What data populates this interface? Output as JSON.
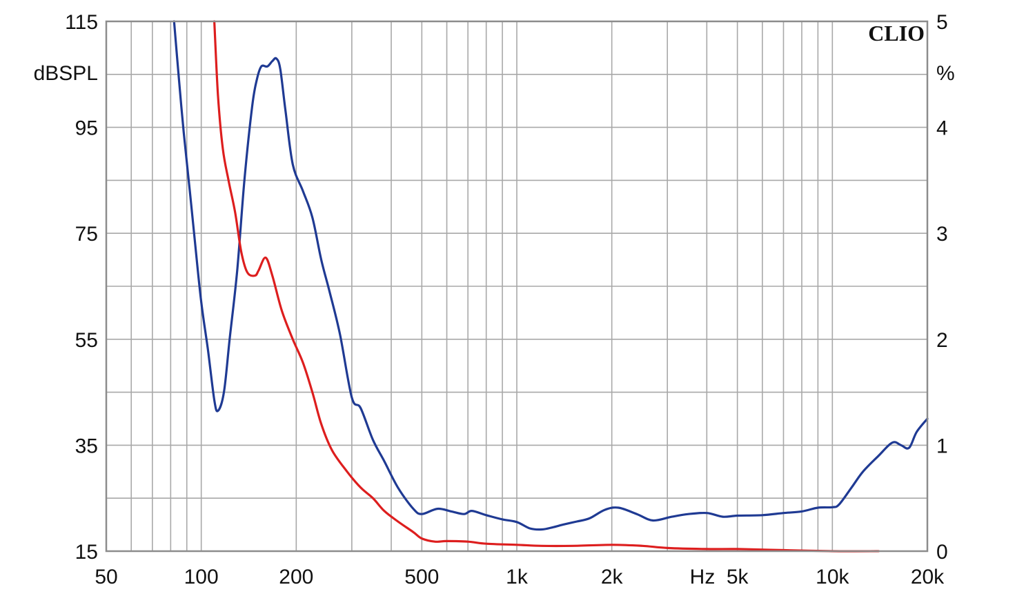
{
  "chart_data": {
    "type": "line",
    "brand": "CLIO",
    "x_axis": {
      "scale": "log",
      "range": [
        50,
        20000
      ],
      "unit_label": "Hz",
      "ticks": [
        {
          "value": 50,
          "label": "50"
        },
        {
          "value": 100,
          "label": "100"
        },
        {
          "value": 200,
          "label": "200"
        },
        {
          "value": 500,
          "label": "500"
        },
        {
          "value": 1000,
          "label": "1k"
        },
        {
          "value": 2000,
          "label": "2k"
        },
        {
          "value": 5000,
          "label": "5k"
        },
        {
          "value": 10000,
          "label": "10k"
        },
        {
          "value": 20000,
          "label": "20k"
        }
      ]
    },
    "y_left": {
      "unit_label": "dBSPL",
      "range": [
        15,
        115
      ],
      "ticks": [
        "15",
        "35",
        "55",
        "75",
        "95",
        "115"
      ]
    },
    "y_right": {
      "unit_label": "%",
      "range": [
        0,
        5
      ],
      "ticks": [
        "0",
        "1",
        "2",
        "3",
        "4",
        "5"
      ]
    },
    "grid": true,
    "colors": {
      "blue": "#1f3a93",
      "red": "#dd1e1e",
      "grid": "#a8a8a8"
    },
    "series": [
      {
        "color": "blue",
        "axis": "left",
        "points": [
          [
            82,
            115
          ],
          [
            85,
            104
          ],
          [
            88,
            94
          ],
          [
            92,
            83
          ],
          [
            96,
            72
          ],
          [
            100,
            62
          ],
          [
            105,
            53
          ],
          [
            110,
            43.5
          ],
          [
            113,
            41.5
          ],
          [
            118,
            45
          ],
          [
            123,
            55
          ],
          [
            130,
            68
          ],
          [
            137,
            85
          ],
          [
            145,
            99
          ],
          [
            150,
            104
          ],
          [
            155,
            106.5
          ],
          [
            162,
            106.5
          ],
          [
            168,
            107.5
          ],
          [
            173,
            108
          ],
          [
            178,
            106
          ],
          [
            185,
            98
          ],
          [
            195,
            88
          ],
          [
            210,
            83
          ],
          [
            225,
            78
          ],
          [
            240,
            70
          ],
          [
            255,
            64
          ],
          [
            275,
            56
          ],
          [
            300,
            44
          ],
          [
            320,
            42
          ],
          [
            350,
            36
          ],
          [
            380,
            32
          ],
          [
            420,
            27
          ],
          [
            470,
            23
          ],
          [
            500,
            22
          ],
          [
            560,
            23
          ],
          [
            620,
            22.5
          ],
          [
            680,
            22
          ],
          [
            720,
            22.6
          ],
          [
            800,
            21.8
          ],
          [
            900,
            21
          ],
          [
            1000,
            20.5
          ],
          [
            1100,
            19.3
          ],
          [
            1200,
            19.1
          ],
          [
            1300,
            19.5
          ],
          [
            1400,
            20
          ],
          [
            1550,
            20.6
          ],
          [
            1700,
            21.2
          ],
          [
            1900,
            22.8
          ],
          [
            2100,
            23.2
          ],
          [
            2400,
            22
          ],
          [
            2700,
            20.8
          ],
          [
            3100,
            21.5
          ],
          [
            3500,
            22
          ],
          [
            4000,
            22.2
          ],
          [
            4500,
            21.5
          ],
          [
            5000,
            21.7
          ],
          [
            6000,
            21.8
          ],
          [
            7000,
            22.2
          ],
          [
            8000,
            22.5
          ],
          [
            9000,
            23.2
          ],
          [
            10000,
            23.3
          ],
          [
            10500,
            23.8
          ],
          [
            11500,
            27
          ],
          [
            12500,
            30
          ],
          [
            14000,
            33
          ],
          [
            15500,
            35.5
          ],
          [
            16500,
            35
          ],
          [
            17500,
            34.5
          ],
          [
            18500,
            37.5
          ],
          [
            20000,
            40
          ]
        ]
      },
      {
        "color": "red",
        "axis": "right",
        "points": [
          [
            110,
            5.0
          ],
          [
            113,
            4.3
          ],
          [
            117,
            3.8
          ],
          [
            122,
            3.5
          ],
          [
            128,
            3.2
          ],
          [
            134,
            2.82
          ],
          [
            140,
            2.63
          ],
          [
            148,
            2.6
          ],
          [
            152,
            2.65
          ],
          [
            160,
            2.77
          ],
          [
            168,
            2.6
          ],
          [
            180,
            2.27
          ],
          [
            195,
            2.0
          ],
          [
            210,
            1.78
          ],
          [
            225,
            1.5
          ],
          [
            240,
            1.2
          ],
          [
            260,
            0.95
          ],
          [
            290,
            0.75
          ],
          [
            320,
            0.6
          ],
          [
            350,
            0.5
          ],
          [
            380,
            0.38
          ],
          [
            420,
            0.28
          ],
          [
            470,
            0.18
          ],
          [
            500,
            0.12
          ],
          [
            550,
            0.09
          ],
          [
            600,
            0.095
          ],
          [
            700,
            0.09
          ],
          [
            800,
            0.07
          ],
          [
            1000,
            0.06
          ],
          [
            1200,
            0.05
          ],
          [
            1500,
            0.05
          ],
          [
            2000,
            0.06
          ],
          [
            2500,
            0.05
          ],
          [
            3000,
            0.03
          ],
          [
            4000,
            0.02
          ],
          [
            5000,
            0.02
          ],
          [
            7000,
            0.01
          ],
          [
            10000,
            0.0
          ],
          [
            14000,
            0.0
          ]
        ]
      }
    ]
  }
}
